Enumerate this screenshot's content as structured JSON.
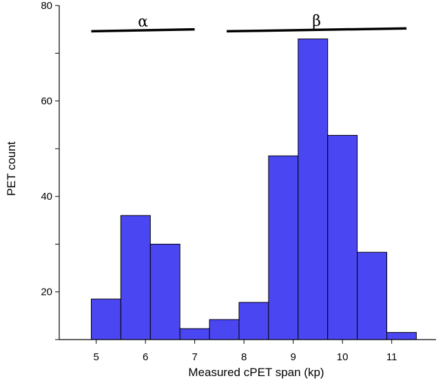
{
  "chart_data": {
    "type": "bar",
    "subtype": "histogram",
    "xlabel": "Measured cPET span (kp)",
    "ylabel": "PET count",
    "xlim": [
      4.25,
      11.9
    ],
    "ylim": [
      10,
      80
    ],
    "xticks": [
      5,
      6,
      7,
      8,
      9,
      10,
      11
    ],
    "yticks": [
      20,
      40,
      60,
      80
    ],
    "bar_color": "#4a46f2",
    "bar_edge_color": "#000000",
    "bins": [
      {
        "x0": 4.9,
        "x1": 5.5,
        "value": 18.5
      },
      {
        "x0": 5.5,
        "x1": 6.1,
        "value": 36
      },
      {
        "x0": 6.1,
        "x1": 6.7,
        "value": 30
      },
      {
        "x0": 6.7,
        "x1": 7.3,
        "value": 12.3
      },
      {
        "x0": 7.3,
        "x1": 7.9,
        "value": 14.2
      },
      {
        "x0": 7.9,
        "x1": 8.5,
        "value": 17.8
      },
      {
        "x0": 8.5,
        "x1": 9.1,
        "value": 48.5
      },
      {
        "x0": 9.1,
        "x1": 9.7,
        "value": 73
      },
      {
        "x0": 9.7,
        "x1": 10.3,
        "value": 52.8
      },
      {
        "x0": 10.3,
        "x1": 10.9,
        "value": 28.3
      },
      {
        "x0": 10.9,
        "x1": 11.5,
        "value": 11.5
      }
    ],
    "annotations": [
      {
        "label": "α",
        "x0": 4.9,
        "x1": 7.0,
        "y0": 74.6,
        "y1": 75
      },
      {
        "label": "β",
        "x0": 7.65,
        "x1": 11.3,
        "y0": 74.6,
        "y1": 75.2
      }
    ]
  }
}
